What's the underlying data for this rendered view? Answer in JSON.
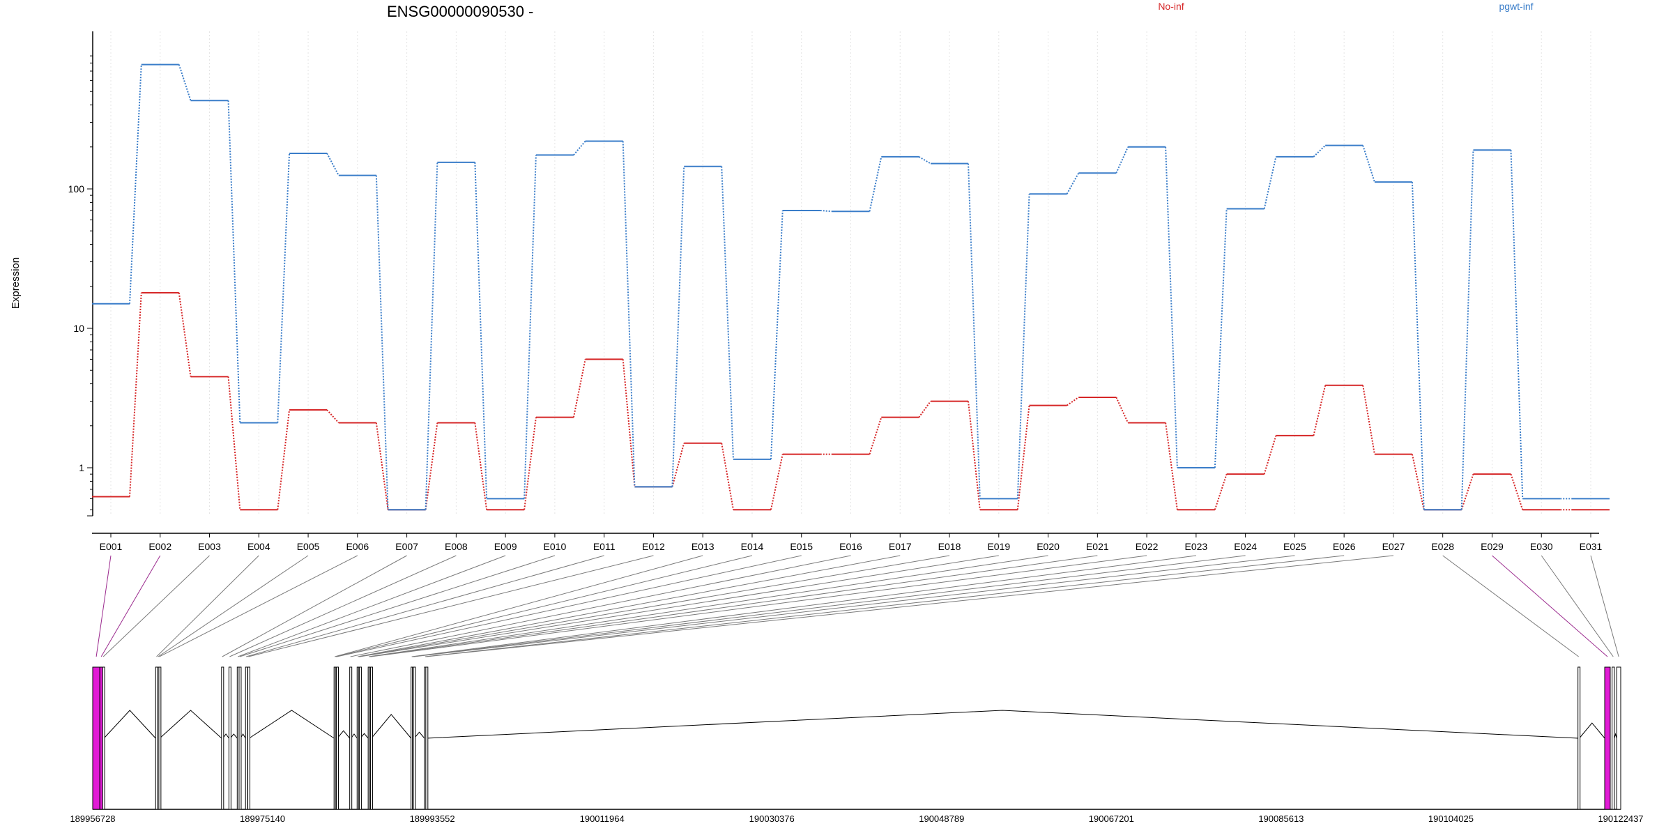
{
  "chart_data": {
    "type": "line",
    "title": "ENSG00000090530 -",
    "ylabel": "Expression",
    "xlabel": "",
    "yscale": "log",
    "ylim": [
      0.45,
      900
    ],
    "yticks": [
      1,
      10,
      100
    ],
    "grid": "vertical dotted lines at exon centers",
    "legend_position": "top",
    "categories": [
      "E001",
      "E002",
      "E003",
      "E004",
      "E005",
      "E006",
      "E007",
      "E008",
      "E009",
      "E010",
      "E011",
      "E012",
      "E013",
      "E014",
      "E015",
      "E016",
      "E017",
      "E018",
      "E019",
      "E020",
      "E021",
      "E022",
      "E023",
      "E024",
      "E025",
      "E026",
      "E027",
      "E028",
      "E029",
      "E030",
      "E031"
    ],
    "series": [
      {
        "name": "No-inf",
        "color": "#d62728",
        "values": [
          0.62,
          18,
          4.5,
          0.5,
          2.6,
          2.1,
          0.5,
          2.1,
          0.5,
          2.3,
          6,
          0.73,
          1.5,
          0.5,
          1.25,
          1.25,
          2.3,
          3,
          0.5,
          2.8,
          3.2,
          2.1,
          0.5,
          0.9,
          1.7,
          3.9,
          1.25,
          0.5,
          0.9,
          0.5,
          0.5
        ]
      },
      {
        "name": "pgwt-inf",
        "color": "#3a7dc9",
        "values": [
          15,
          780,
          430,
          2.1,
          180,
          125,
          0.5,
          155,
          0.6,
          175,
          220,
          0.73,
          145,
          1.15,
          70,
          69,
          170,
          152,
          0.6,
          92,
          130,
          200,
          1.0,
          72,
          170,
          205,
          112,
          0.5,
          190,
          0.6,
          0.6
        ]
      }
    ]
  },
  "gene_model": {
    "coordinate_labels": [
      "189956728",
      "189975140",
      "189993552",
      "190011964",
      "190030376",
      "190048789",
      "190067201",
      "190085613",
      "190104025",
      "190122437"
    ],
    "genome_start": 189956728,
    "genome_end": 190122437,
    "exons": [
      {
        "id": "E001",
        "start": 189956728,
        "end": 189957500,
        "highlight": true
      },
      {
        "id": "E002",
        "start": 189957500,
        "end": 189957800,
        "highlight": true
      },
      {
        "id": "E003",
        "start": 189957800,
        "end": 189957950,
        "highlight": false
      },
      {
        "id": "E004",
        "start": 189963550,
        "end": 189963750,
        "highlight": false
      },
      {
        "id": "E005",
        "start": 189963750,
        "end": 189963900,
        "highlight": false
      },
      {
        "id": "E006",
        "start": 189963900,
        "end": 189964000,
        "highlight": false
      },
      {
        "id": "E007",
        "start": 189970700,
        "end": 189970850,
        "highlight": false
      },
      {
        "id": "E008",
        "start": 189971500,
        "end": 189971650,
        "highlight": false
      },
      {
        "id": "E009",
        "start": 189972400,
        "end": 189972550,
        "highlight": false
      },
      {
        "id": "E010",
        "start": 189972600,
        "end": 189972750,
        "highlight": false
      },
      {
        "id": "E011",
        "start": 189973300,
        "end": 189973450,
        "highlight": false
      },
      {
        "id": "E012",
        "start": 189973550,
        "end": 189973700,
        "highlight": false
      },
      {
        "id": "E013",
        "start": 189982900,
        "end": 189983050,
        "highlight": false
      },
      {
        "id": "E014",
        "start": 189983050,
        "end": 189983150,
        "highlight": false
      },
      {
        "id": "E015",
        "start": 189983150,
        "end": 189983250,
        "highlight": false
      },
      {
        "id": "E016",
        "start": 189984600,
        "end": 189984750,
        "highlight": false
      },
      {
        "id": "E017",
        "start": 189985400,
        "end": 189985550,
        "highlight": false
      },
      {
        "id": "E018",
        "start": 189985550,
        "end": 189985650,
        "highlight": false
      },
      {
        "id": "E019",
        "start": 189985650,
        "end": 189985750,
        "highlight": false
      },
      {
        "id": "E020",
        "start": 189986600,
        "end": 189986750,
        "highlight": false
      },
      {
        "id": "E021",
        "start": 189986750,
        "end": 189986850,
        "highlight": false
      },
      {
        "id": "E022",
        "start": 189986850,
        "end": 189986950,
        "highlight": false
      },
      {
        "id": "E023",
        "start": 189991250,
        "end": 189991400,
        "highlight": false
      },
      {
        "id": "E024",
        "start": 189991400,
        "end": 189991500,
        "highlight": false
      },
      {
        "id": "E025",
        "start": 189991500,
        "end": 189991600,
        "highlight": false
      },
      {
        "id": "E026",
        "start": 189992700,
        "end": 189992850,
        "highlight": false
      },
      {
        "id": "E027",
        "start": 189992850,
        "end": 189992950,
        "highlight": false
      },
      {
        "id": "E028",
        "start": 190117800,
        "end": 190117950,
        "highlight": false
      },
      {
        "id": "E029",
        "start": 190120700,
        "end": 190121300,
        "highlight": true
      },
      {
        "id": "E030",
        "start": 190121500,
        "end": 190121750,
        "highlight": false
      },
      {
        "id": "E031",
        "start": 190122000,
        "end": 190122437,
        "highlight": false
      }
    ]
  }
}
